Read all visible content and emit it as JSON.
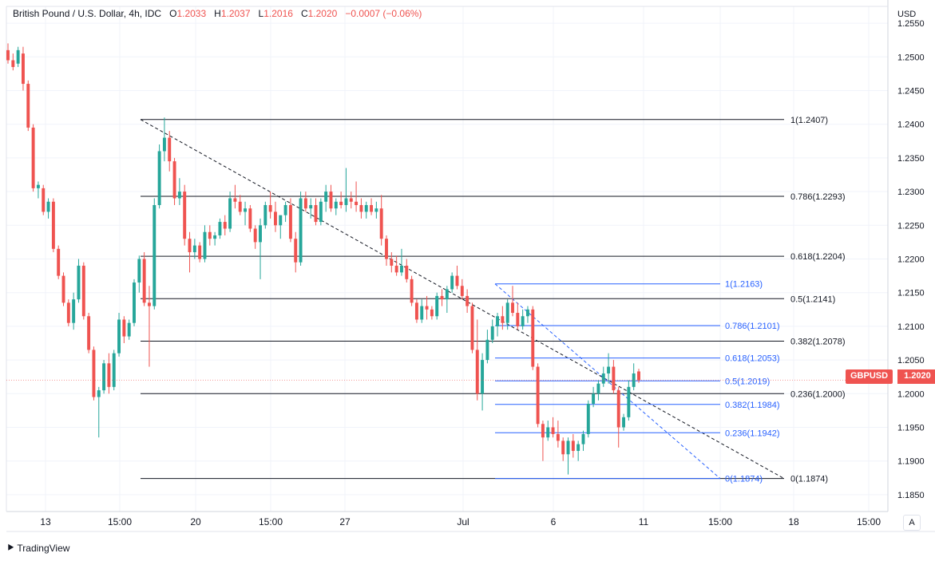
{
  "legend": {
    "symbol": "British Pound / U.S. Dollar, 4h, IDC",
    "open_label": "O",
    "open": "1.2033",
    "high_label": "H",
    "high": "1.2037",
    "low_label": "L",
    "low": "1.2016",
    "close_label": "C",
    "close": "1.2020",
    "change": "−0.0007 (−0.06%)"
  },
  "axis": {
    "currency": "USD"
  },
  "price_tag": {
    "symbol": "GBPUSD",
    "price": "1.2020"
  },
  "auto_button": "A",
  "brand": "TradingView",
  "colors": {
    "up": "#26a69a",
    "down": "#ef5350",
    "fib_black": "#131722",
    "fib_blue": "#2962ff"
  },
  "chart_data": {
    "type": "candlestick",
    "instrument": "GBPUSD",
    "timeframe": "4h",
    "y_range": [
      1.1825,
      1.2575
    ],
    "y_ticks": [
      "1.2550",
      "1.2500",
      "1.2450",
      "1.2400",
      "1.2350",
      "1.2300",
      "1.2250",
      "1.2200",
      "1.2150",
      "1.2100",
      "1.2050",
      "1.2000",
      "1.1950",
      "1.1900",
      "1.1850"
    ],
    "x_ticks": [
      "13",
      "15:00",
      "20",
      "15:00",
      "27",
      "Jul",
      "6",
      "11",
      "15:00",
      "18",
      "15:00"
    ],
    "fib_black": [
      {
        "level": "1",
        "price": 1.2407,
        "label": "1(1.2407)"
      },
      {
        "level": "0.786",
        "price": 1.2293,
        "label": "0.786(1.2293)"
      },
      {
        "level": "0.618",
        "price": 1.2204,
        "label": "0.618(1.2204)"
      },
      {
        "level": "0.5",
        "price": 1.2141,
        "label": "0.5(1.2141)"
      },
      {
        "level": "0.382",
        "price": 1.2078,
        "label": "0.382(1.2078)"
      },
      {
        "level": "0.236",
        "price": 1.2,
        "label": "0.236(1.2000)"
      },
      {
        "level": "0",
        "price": 1.1874,
        "label": "0(1.1874)"
      }
    ],
    "fib_blue": [
      {
        "level": "1",
        "price": 1.2163,
        "label": "1(1.2163)"
      },
      {
        "level": "0.786",
        "price": 1.2101,
        "label": "0.786(1.2101)"
      },
      {
        "level": "0.618",
        "price": 1.2053,
        "label": "0.618(1.2053)"
      },
      {
        "level": "0.5",
        "price": 1.2019,
        "label": "0.5(1.2019)"
      },
      {
        "level": "0.382",
        "price": 1.1984,
        "label": "0.382(1.1984)"
      },
      {
        "level": "0.236",
        "price": 1.1942,
        "label": "0.236(1.1942)"
      },
      {
        "level": "0",
        "price": 1.1874,
        "label": "0(1.1874)"
      }
    ],
    "candles": [
      [
        1.251,
        1.252,
        1.249,
        1.2495
      ],
      [
        1.2495,
        1.2505,
        1.248,
        1.2485
      ],
      [
        1.249,
        1.2515,
        1.2485,
        1.251
      ],
      [
        1.2505,
        1.2515,
        1.245,
        1.246
      ],
      [
        1.246,
        1.2465,
        1.239,
        1.2395
      ],
      [
        1.2395,
        1.24,
        1.23,
        1.2305
      ],
      [
        1.2305,
        1.2315,
        1.229,
        1.231
      ],
      [
        1.2305,
        1.231,
        1.2265,
        1.227
      ],
      [
        1.227,
        1.229,
        1.226,
        1.2285
      ],
      [
        1.2285,
        1.229,
        1.221,
        1.2215
      ],
      [
        1.2215,
        1.222,
        1.217,
        1.2175
      ],
      [
        1.2175,
        1.218,
        1.213,
        1.2135
      ],
      [
        1.2135,
        1.214,
        1.21,
        1.2105
      ],
      [
        1.2105,
        1.215,
        1.2095,
        1.214
      ],
      [
        1.214,
        1.22,
        1.2135,
        1.219
      ],
      [
        1.219,
        1.2195,
        1.211,
        1.2115
      ],
      [
        1.2115,
        1.212,
        1.206,
        1.2065
      ],
      [
        1.2065,
        1.207,
        1.199,
        1.1995
      ],
      [
        1.1995,
        1.201,
        1.1935,
        1.2005
      ],
      [
        1.2005,
        1.205,
        1.2,
        1.2045
      ],
      [
        1.2045,
        1.206,
        1.2,
        1.201
      ],
      [
        1.201,
        1.2065,
        1.2005,
        1.206
      ],
      [
        1.206,
        1.212,
        1.2055,
        1.211
      ],
      [
        1.211,
        1.2115,
        1.2075,
        1.2085
      ],
      [
        1.2085,
        1.211,
        1.208,
        1.2105
      ],
      [
        1.2105,
        1.217,
        1.21,
        1.2165
      ],
      [
        1.2165,
        1.2205,
        1.215,
        1.22
      ],
      [
        1.22,
        1.221,
        1.213,
        1.2135
      ],
      [
        1.2135,
        1.216,
        1.204,
        1.213
      ],
      [
        1.213,
        1.229,
        1.2125,
        1.228
      ],
      [
        1.228,
        1.237,
        1.2275,
        1.236
      ],
      [
        1.236,
        1.241,
        1.2345,
        1.238
      ],
      [
        1.238,
        1.239,
        1.233,
        1.2345
      ],
      [
        1.2345,
        1.235,
        1.228,
        1.229
      ],
      [
        1.229,
        1.232,
        1.228,
        1.23
      ],
      [
        1.23,
        1.231,
        1.222,
        1.223
      ],
      [
        1.223,
        1.224,
        1.218,
        1.221
      ],
      [
        1.221,
        1.223,
        1.22,
        1.222
      ],
      [
        1.222,
        1.2225,
        1.2195,
        1.22
      ],
      [
        1.22,
        1.225,
        1.2195,
        1.224
      ],
      [
        1.224,
        1.225,
        1.222,
        1.223
      ],
      [
        1.223,
        1.224,
        1.222,
        1.2235
      ],
      [
        1.2235,
        1.226,
        1.223,
        1.2255
      ],
      [
        1.2255,
        1.2265,
        1.2235,
        1.2245
      ],
      [
        1.2245,
        1.23,
        1.224,
        1.229
      ],
      [
        1.229,
        1.231,
        1.2275,
        1.2285
      ],
      [
        1.2285,
        1.2295,
        1.2265,
        1.227
      ],
      [
        1.227,
        1.2285,
        1.225,
        1.2275
      ],
      [
        1.2275,
        1.228,
        1.224,
        1.2245
      ],
      [
        1.2245,
        1.225,
        1.2215,
        1.2225
      ],
      [
        1.2225,
        1.226,
        1.217,
        1.225
      ],
      [
        1.225,
        1.2285,
        1.2245,
        1.228
      ],
      [
        1.228,
        1.23,
        1.226,
        1.227
      ],
      [
        1.227,
        1.2285,
        1.224,
        1.225
      ],
      [
        1.225,
        1.226,
        1.223,
        1.2265
      ],
      [
        1.2265,
        1.2285,
        1.2255,
        1.228
      ],
      [
        1.228,
        1.229,
        1.2225,
        1.223
      ],
      [
        1.223,
        1.224,
        1.218,
        1.2195
      ],
      [
        1.2195,
        1.23,
        1.219,
        1.229
      ],
      [
        1.229,
        1.23,
        1.227,
        1.2275
      ],
      [
        1.2275,
        1.229,
        1.226,
        1.228
      ],
      [
        1.228,
        1.229,
        1.225,
        1.2255
      ],
      [
        1.2255,
        1.229,
        1.225,
        1.2285
      ],
      [
        1.2285,
        1.231,
        1.227,
        1.23
      ],
      [
        1.23,
        1.231,
        1.227,
        1.2275
      ],
      [
        1.2275,
        1.229,
        1.2265,
        1.2285
      ],
      [
        1.2285,
        1.23,
        1.2275,
        1.228
      ],
      [
        1.228,
        1.2335,
        1.227,
        1.229
      ],
      [
        1.229,
        1.23,
        1.2275,
        1.2285
      ],
      [
        1.2285,
        1.2315,
        1.227,
        1.228
      ],
      [
        1.228,
        1.229,
        1.226,
        1.227
      ],
      [
        1.227,
        1.2285,
        1.226,
        1.228
      ],
      [
        1.228,
        1.229,
        1.2265,
        1.227
      ],
      [
        1.227,
        1.2285,
        1.226,
        1.2275
      ],
      [
        1.2275,
        1.2295,
        1.222,
        1.223
      ],
      [
        1.223,
        1.2235,
        1.219,
        1.22
      ],
      [
        1.22,
        1.221,
        1.218,
        1.219
      ],
      [
        1.219,
        1.2205,
        1.2175,
        1.218
      ],
      [
        1.218,
        1.2215,
        1.2175,
        1.219
      ],
      [
        1.219,
        1.22,
        1.2165,
        1.217
      ],
      [
        1.217,
        1.2175,
        1.213,
        1.2135
      ],
      [
        1.2135,
        1.214,
        1.2105,
        1.211
      ],
      [
        1.211,
        1.214,
        1.2105,
        1.213
      ],
      [
        1.213,
        1.2145,
        1.211,
        1.2125
      ],
      [
        1.2125,
        1.213,
        1.211,
        1.2115
      ],
      [
        1.2115,
        1.215,
        1.211,
        1.2145
      ],
      [
        1.2145,
        1.2155,
        1.213,
        1.214
      ],
      [
        1.214,
        1.216,
        1.212,
        1.2155
      ],
      [
        1.2155,
        1.218,
        1.215,
        1.2175
      ],
      [
        1.2175,
        1.219,
        1.2155,
        1.216
      ],
      [
        1.216,
        1.217,
        1.214,
        1.2145
      ],
      [
        1.2145,
        1.2155,
        1.212,
        1.213
      ],
      [
        1.213,
        1.2135,
        1.206,
        1.2065
      ],
      [
        1.2065,
        1.211,
        1.199,
        1.2
      ],
      [
        1.2,
        1.206,
        1.1975,
        1.205
      ],
      [
        1.205,
        1.2095,
        1.2045,
        1.208
      ],
      [
        1.208,
        1.211,
        1.2075,
        1.21
      ],
      [
        1.21,
        1.212,
        1.2085,
        1.2115
      ],
      [
        1.2115,
        1.213,
        1.2095,
        1.2105
      ],
      [
        1.2105,
        1.214,
        1.2095,
        1.2135
      ],
      [
        1.2135,
        1.216,
        1.2115,
        1.212
      ],
      [
        1.212,
        1.2135,
        1.2095,
        1.21
      ],
      [
        1.21,
        1.2125,
        1.2095,
        1.2115
      ],
      [
        1.2115,
        1.213,
        1.2105,
        1.2125
      ],
      [
        1.2125,
        1.213,
        1.2035,
        1.204
      ],
      [
        1.204,
        1.2045,
        1.195,
        1.1955
      ],
      [
        1.1955,
        1.196,
        1.19,
        1.1935
      ],
      [
        1.1935,
        1.196,
        1.193,
        1.195
      ],
      [
        1.195,
        1.1965,
        1.1935,
        1.194
      ],
      [
        1.194,
        1.196,
        1.192,
        1.193
      ],
      [
        1.193,
        1.1935,
        1.19,
        1.191
      ],
      [
        1.191,
        1.1935,
        1.188,
        1.193
      ],
      [
        1.193,
        1.194,
        1.1905,
        1.1915
      ],
      [
        1.1915,
        1.193,
        1.19,
        1.1925
      ],
      [
        1.1925,
        1.1945,
        1.1915,
        1.194
      ],
      [
        1.194,
        1.199,
        1.1935,
        1.1985
      ],
      [
        1.1985,
        1.201,
        1.198,
        1.2
      ],
      [
        1.2,
        1.202,
        1.199,
        1.2015
      ],
      [
        1.2015,
        1.204,
        1.201,
        1.203
      ],
      [
        1.203,
        1.206,
        1.2015,
        1.204
      ],
      [
        1.204,
        1.205,
        1.2,
        1.2005
      ],
      [
        1.2005,
        1.201,
        1.192,
        1.195
      ],
      [
        1.195,
        1.197,
        1.1945,
        1.1965
      ],
      [
        1.1965,
        1.202,
        1.196,
        1.201
      ],
      [
        1.201,
        1.2045,
        1.2005,
        1.203
      ],
      [
        1.2033,
        1.2037,
        1.2016,
        1.202
      ]
    ]
  }
}
